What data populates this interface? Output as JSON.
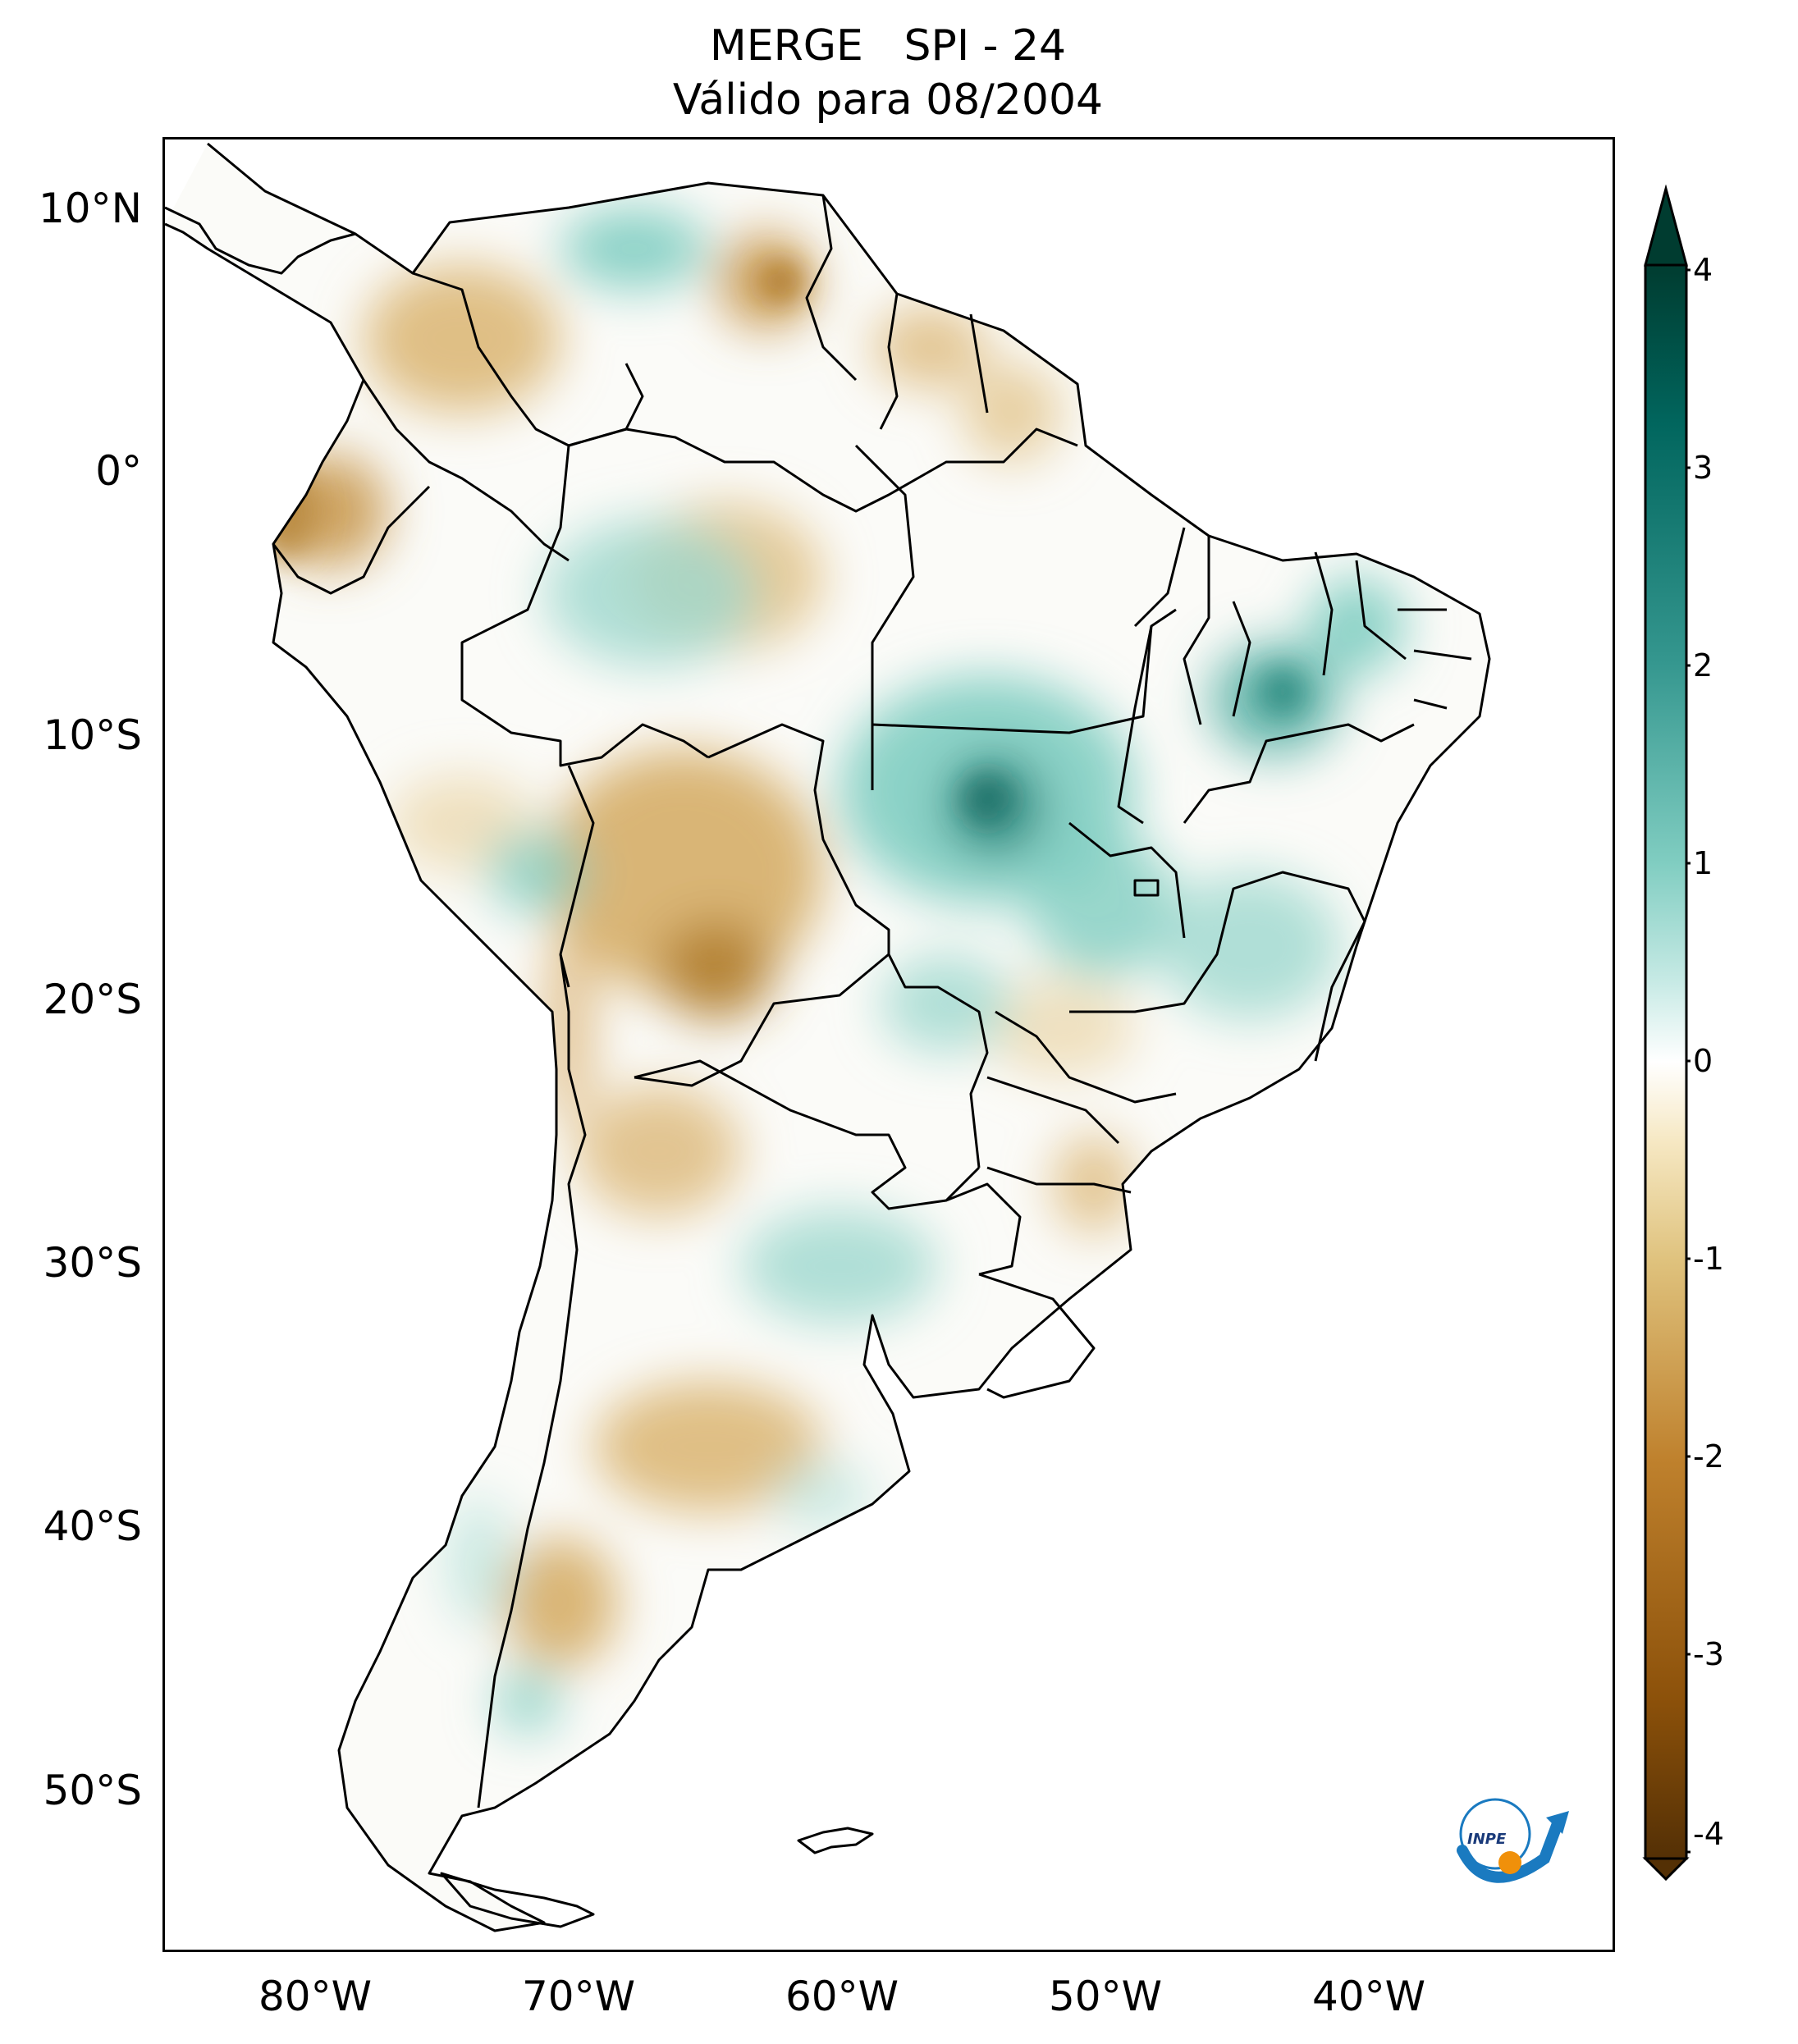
{
  "title": {
    "line1": "MERGE   SPI - 24",
    "line2": "Válido para 08/2004"
  },
  "axes": {
    "y_labels": [
      "10°N",
      "0°",
      "10°S",
      "20°S",
      "30°S",
      "40°S",
      "50°S"
    ],
    "x_labels": [
      "80°W",
      "70°W",
      "60°W",
      "50°W",
      "40°W"
    ]
  },
  "colorbar": {
    "ticks": [
      "4",
      "3",
      "2",
      "1",
      "0",
      "-1",
      "-2",
      "-3",
      "-4"
    ],
    "range": [
      -4,
      4
    ],
    "extend": "both",
    "colormap": "BrBG",
    "colors_low_to_high": [
      "#543005",
      "#8c510a",
      "#bf812d",
      "#dfc27d",
      "#f6e8c3",
      "#ffffff",
      "#c7eae5",
      "#80cdc1",
      "#35978f",
      "#01665e",
      "#003c30"
    ]
  },
  "map": {
    "region": "South America",
    "palette": {
      "dry_strong": "#a8711f",
      "dry": "#dcb878",
      "dry_light": "#ecd9b0",
      "neutral": "#ffffff",
      "wet_light": "#bfe6df",
      "wet": "#80cdc1",
      "wet_strong": "#3f9d92",
      "border": "#000000"
    }
  },
  "logo": {
    "text": "INPE",
    "colors": [
      "#1a7ac0",
      "#f0900a"
    ]
  }
}
